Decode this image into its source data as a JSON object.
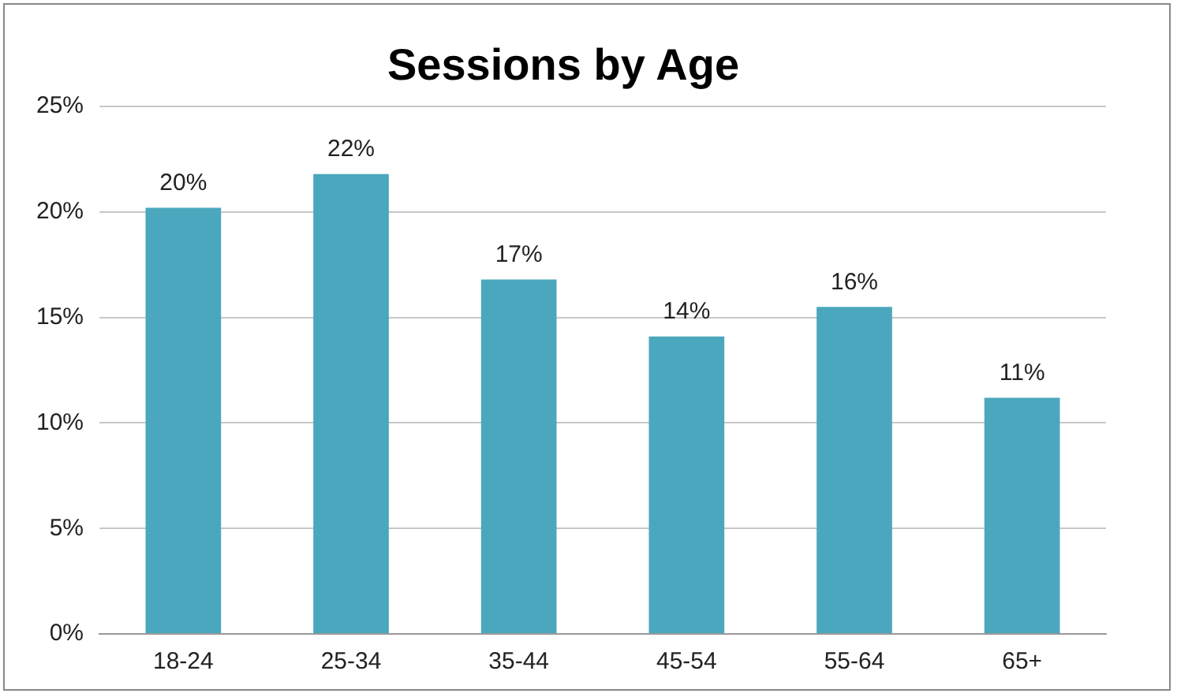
{
  "chart_data": {
    "type": "bar",
    "title": "Sessions by Age",
    "categories": [
      "18-24",
      "25-34",
      "35-44",
      "45-54",
      "55-64",
      "65+"
    ],
    "values": [
      20.2,
      21.8,
      16.8,
      14.1,
      15.5,
      11.2
    ],
    "value_labels": [
      "20%",
      "22%",
      "17%",
      "14%",
      "16%",
      "11%"
    ],
    "color": "#4ba7bd",
    "ylim": [
      0,
      25
    ],
    "yticks": [
      {
        "value": 0,
        "label": "0%"
      },
      {
        "value": 5,
        "label": "5%"
      },
      {
        "value": 10,
        "label": "10%"
      },
      {
        "value": 15,
        "label": "15%"
      },
      {
        "value": 20,
        "label": "20%"
      },
      {
        "value": 25,
        "label": "25%"
      }
    ],
    "grid": "y",
    "legend": false
  }
}
